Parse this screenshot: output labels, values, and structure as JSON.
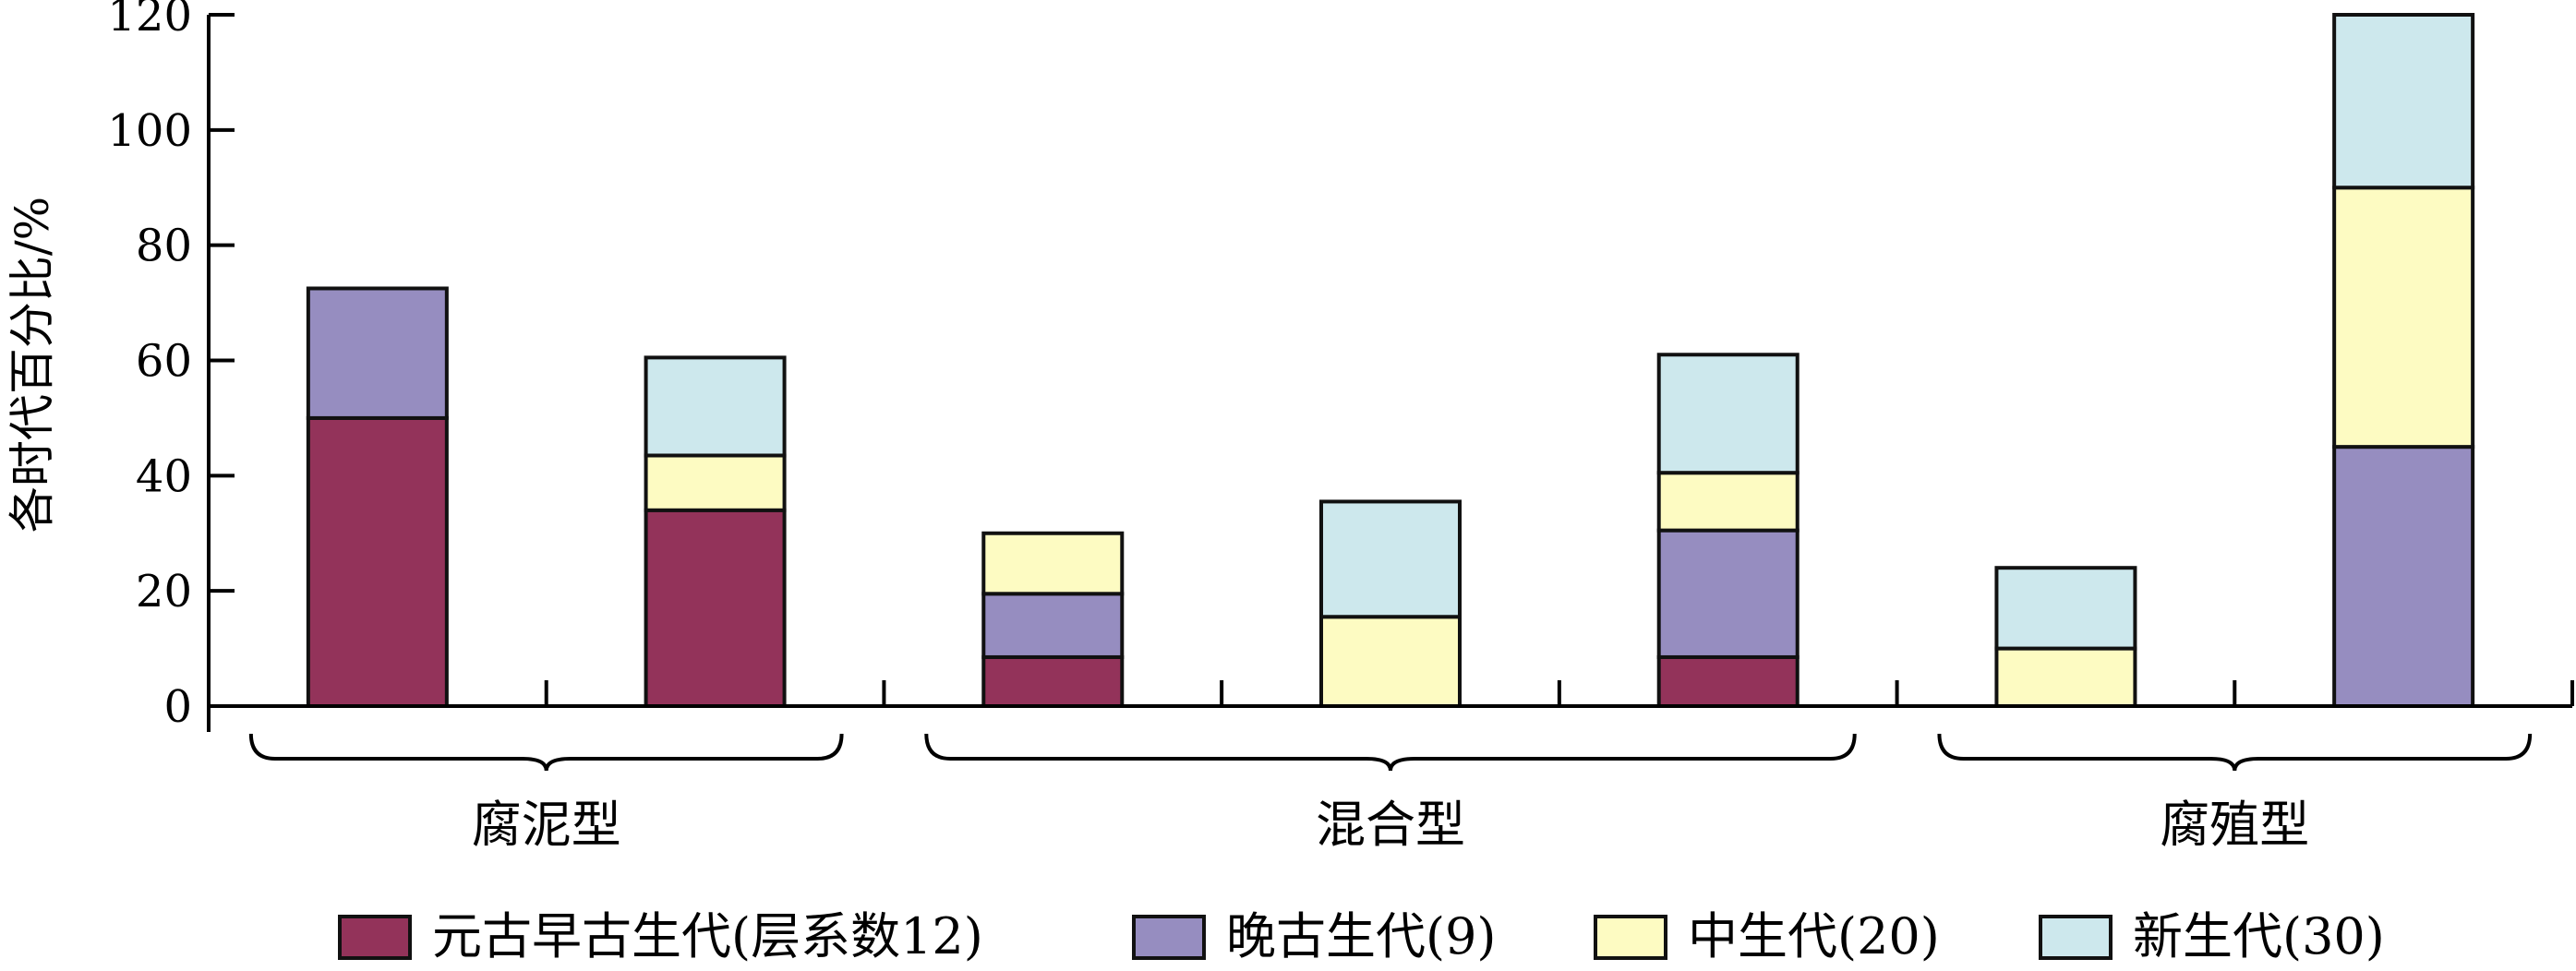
{
  "chart_data": {
    "type": "bar",
    "stacked": true,
    "ylabel": "各时代百分比/%",
    "ylim": [
      0,
      120
    ],
    "yticks": [
      0,
      20,
      40,
      60,
      80,
      100,
      120
    ],
    "grid": false,
    "legend_position": "bottom",
    "groups": [
      {
        "label": "腐泥型",
        "bar_indices": [
          0,
          1
        ]
      },
      {
        "label": "混合型",
        "bar_indices": [
          2,
          3,
          4
        ]
      },
      {
        "label": "腐殖型",
        "bar_indices": [
          5,
          6
        ]
      }
    ],
    "bar_count": 7,
    "series": [
      {
        "name": "元古早古生代(层系数12)",
        "color": "#93335a",
        "values": [
          50,
          34,
          8.5,
          0,
          8.5,
          0,
          0
        ]
      },
      {
        "name": "晚古生代(9)",
        "color": "#968dc0",
        "values": [
          22.5,
          0,
          11,
          0,
          22,
          0,
          45
        ]
      },
      {
        "name": "中生代(20)",
        "color": "#fdfbc2",
        "values": [
          0,
          9.5,
          10.5,
          15.5,
          10,
          10,
          45
        ]
      },
      {
        "name": "新生代(30)",
        "color": "#cde8ed",
        "values": [
          0,
          17,
          0,
          20,
          20.5,
          14,
          30
        ]
      }
    ]
  }
}
